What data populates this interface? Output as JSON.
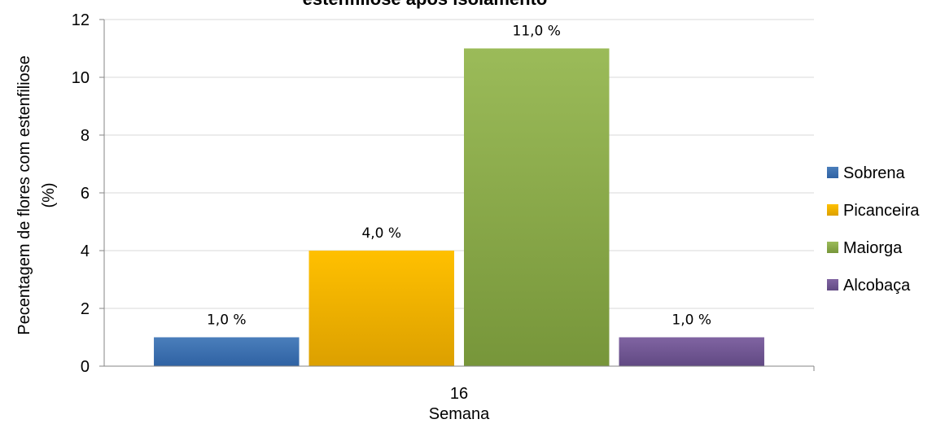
{
  "chart_data": {
    "type": "bar",
    "title": "estenfiliose após isolamento",
    "xlabel": "Semana",
    "ylabel_line1": "Pecentagem de flores com estenfiliose",
    "ylabel_line2": "(%)",
    "categories": [
      "16"
    ],
    "ylim": [
      0,
      12
    ],
    "yticks": [
      "0",
      "2",
      "4",
      "6",
      "8",
      "10",
      "12"
    ],
    "grid": true,
    "legend_position": "right",
    "series": [
      {
        "name": "Sobrena",
        "values": [
          1.0
        ],
        "label": "1,0 %",
        "color": "#4a7ebb",
        "color_dark": "#2f62a3"
      },
      {
        "name": "Picanceira",
        "values": [
          4.0
        ],
        "label": "4,0 %",
        "color": "#ffc000",
        "color_dark": "#dca000"
      },
      {
        "name": "Maiorga",
        "values": [
          11.0
        ],
        "label": "11,0 %",
        "color": "#9bbb59",
        "color_dark": "#77963a"
      },
      {
        "name": "Alcobaça",
        "values": [
          1.0
        ],
        "label": "1,0 %",
        "color": "#8064a2",
        "color_dark": "#614983"
      }
    ]
  }
}
